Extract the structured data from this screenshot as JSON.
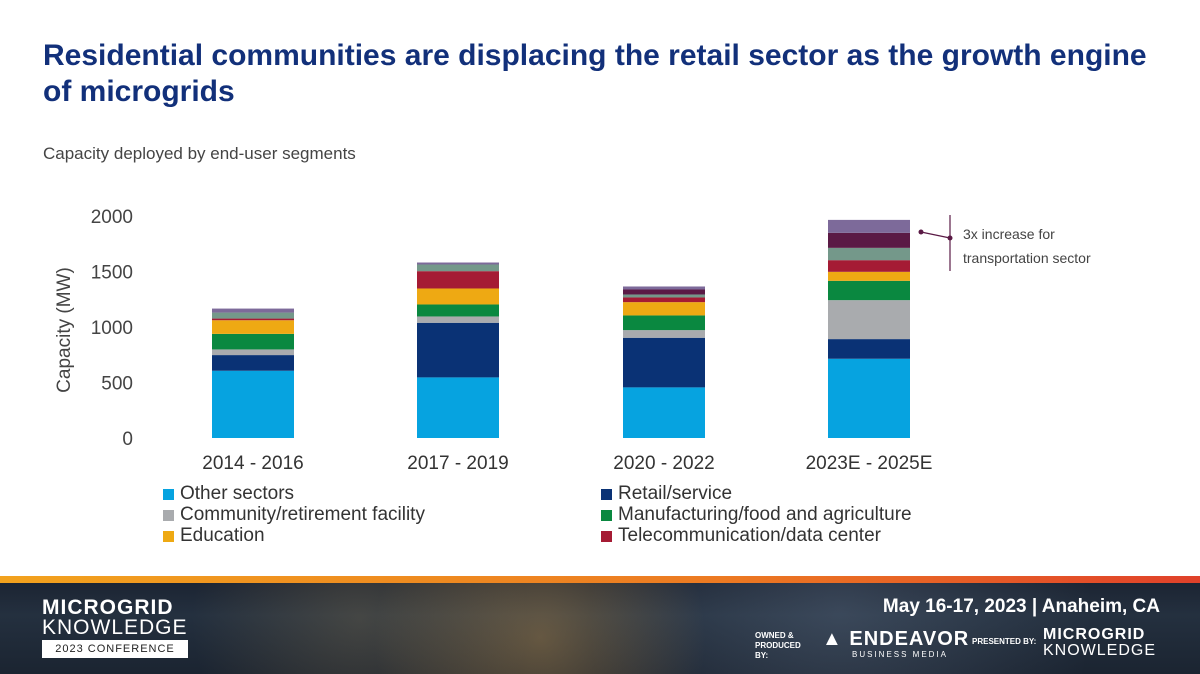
{
  "title": "Residential communities are displacing the retail sector as the growth engine of microgrids",
  "subtitle": "Capacity deployed by end-user segments",
  "chart_data": {
    "type": "bar",
    "stacked": true,
    "title": "",
    "xlabel": "",
    "ylabel": "Capacity (MW)",
    "ylim": [
      0,
      2000
    ],
    "yticks": [
      "0",
      "500",
      "1000",
      "1500",
      "2000"
    ],
    "grid": false,
    "legend_position": "bottom",
    "categories": [
      "2014 - 2016",
      "2017 - 2019",
      "2020 - 2022",
      "2023E - 2025E"
    ],
    "series": [
      {
        "name": "Other sectors",
        "color": "#06a3e0",
        "values": [
          606,
          546,
          456,
          714
        ]
      },
      {
        "name": "Retail/service",
        "color": "#0a3275",
        "values": [
          141,
          492,
          447,
          177
        ]
      },
      {
        "name": "Community/retirement facility",
        "color": "#a9abae",
        "values": [
          51,
          57,
          69,
          351
        ]
      },
      {
        "name": "Manufacturing/food and agriculture",
        "color": "#0a8840",
        "values": [
          140,
          108,
          132,
          174
        ]
      },
      {
        "name": "Education",
        "color": "#eea913",
        "values": [
          123,
          144,
          120,
          81
        ]
      },
      {
        "name": "Telecommunication/data center",
        "color": "#a51b34",
        "values": [
          15,
          156,
          42,
          105
        ]
      },
      {
        "name": "",
        "color": "#74988a",
        "values": [
          54,
          60,
          27,
          111
        ]
      },
      {
        "name": "",
        "color": "#5a1a45",
        "values": [
          0,
          0,
          45,
          135
        ]
      },
      {
        "name": "",
        "color": "#7d6a9a",
        "values": [
          36,
          18,
          27,
          117
        ]
      }
    ],
    "annotation": "3x increase for transportation sector"
  },
  "footer": {
    "brand_line1": "MICROGRID",
    "brand_line2": "KNOWLEDGE",
    "conference": "2023 CONFERENCE",
    "date_location": "May 16-17, 2023 | Anaheim, CA",
    "owned_by": "OWNED & PRODUCED BY:",
    "endeavor": "ENDEAVOR",
    "endeavor_sub": "BUSINESS MEDIA",
    "presented_by": "PRESENTED BY:"
  }
}
